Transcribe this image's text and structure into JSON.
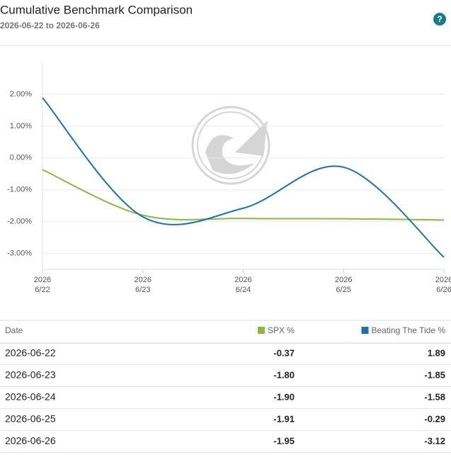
{
  "chart_data": {
    "type": "line",
    "title": "Cumulative Benchmark Comparison",
    "subtitle": "2026-06-22 to 2026-06-26",
    "help_icon": "?",
    "categories": [
      "2026-06-22",
      "2026-06-23",
      "2026-06-24",
      "2026-06-25",
      "2026-06-26"
    ],
    "xtick_labels": [
      [
        "2026",
        "6/22"
      ],
      [
        "2026",
        "6/23"
      ],
      [
        "2026",
        "6/24"
      ],
      [
        "2026",
        "6/25"
      ],
      [
        "2026",
        "6/26"
      ]
    ],
    "ylim": [
      -3.5,
      3
    ],
    "yticks": [
      {
        "value": 2,
        "label": "2.00%"
      },
      {
        "value": 1,
        "label": "1.00%"
      },
      {
        "value": 0,
        "label": "0.00%"
      },
      {
        "value": -1,
        "label": "-1.00%"
      },
      {
        "value": -2,
        "label": "-2.00%"
      },
      {
        "value": -3,
        "label": "-3.00%"
      }
    ],
    "grid": true,
    "series": [
      {
        "name": "SPX %",
        "color": "#8ab842",
        "values": [
          -0.37,
          -1.8,
          -1.9,
          -1.91,
          -1.95
        ],
        "value_labels": [
          "-0.37",
          "-1.80",
          "-1.90",
          "-1.91",
          "-1.95"
        ]
      },
      {
        "name": "Beating The Tide %",
        "color": "#1a72b0",
        "values": [
          1.89,
          -1.85,
          -1.58,
          -0.29,
          -3.12
        ],
        "value_labels": [
          "1.89",
          "-1.85",
          "-1.58",
          "-0.29",
          "-3.12"
        ]
      }
    ],
    "table_header_date": "Date"
  }
}
